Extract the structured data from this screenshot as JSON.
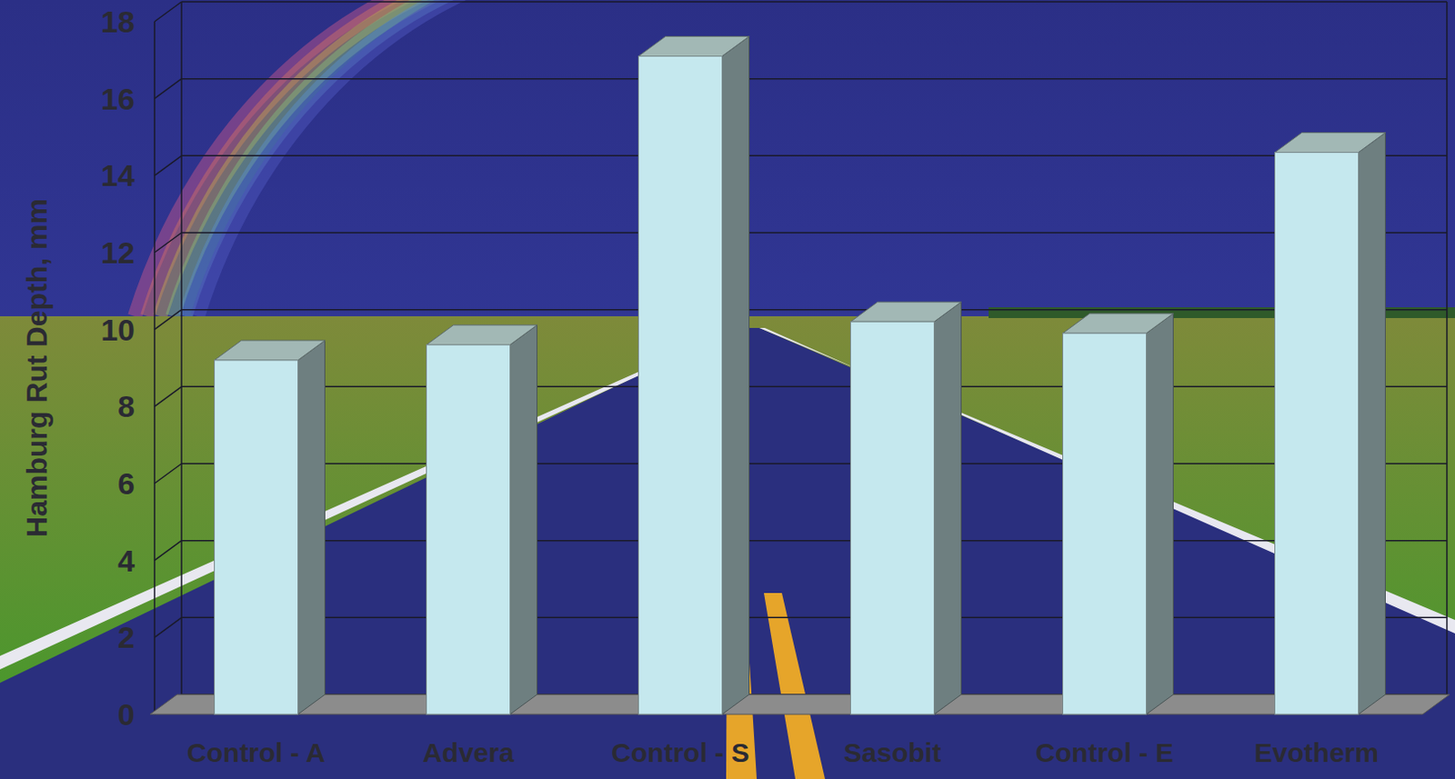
{
  "chart_data": {
    "type": "bar",
    "y_label": "Hamburg Rut Depth, mm",
    "categories": [
      "Control - A",
      "Advera",
      "Control - S",
      "Sasobit",
      "Control - E",
      "Evotherm"
    ],
    "values": [
      9.2,
      9.6,
      17.1,
      10.2,
      9.9,
      14.6
    ],
    "color": "#c5e8ee",
    "ylim": [
      0,
      18
    ],
    "yticks": [
      0,
      2,
      4,
      6,
      8,
      10,
      12,
      14,
      16,
      18
    ],
    "grid": true
  }
}
